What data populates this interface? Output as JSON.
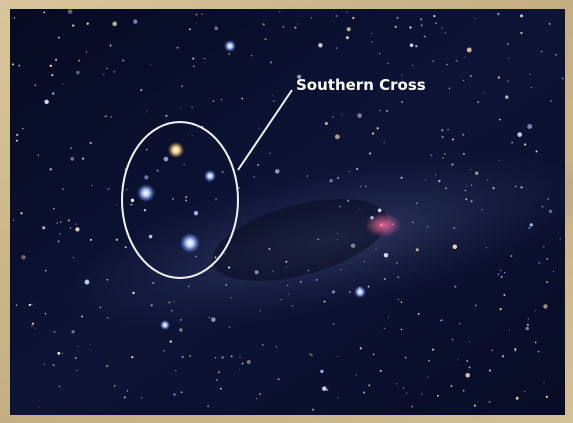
{
  "annotation": {
    "label": "Southern Cross"
  }
}
